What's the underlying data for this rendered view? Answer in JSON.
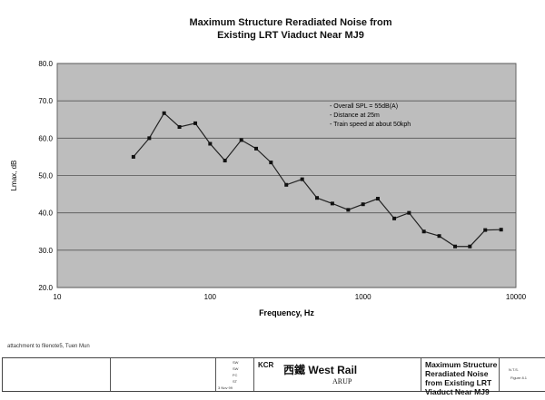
{
  "chart_data": {
    "type": "line",
    "title": "Maximum Structure Reradiated Noise from Existing LRT Viaduct Near MJ9",
    "title_lines": [
      "Maximum Structure Reradiated Noise from",
      "Existing LRT Viaduct Near MJ9"
    ],
    "xlabel": "Frequency, Hz",
    "ylabel": "Lmax, dB",
    "xscale": "log",
    "xlim": [
      10,
      10000
    ],
    "ylim": [
      20,
      80
    ],
    "xticks": [
      "10",
      "100",
      "1000",
      "10000"
    ],
    "yticks": [
      "20.0",
      "30.0",
      "40.0",
      "50.0",
      "60.0",
      "70.0",
      "80.0"
    ],
    "grid": "horizontal",
    "x": [
      31.5,
      40,
      50,
      63,
      80,
      100,
      125,
      160,
      200,
      250,
      315,
      400,
      500,
      630,
      800,
      1000,
      1250,
      1600,
      2000,
      2500,
      3150,
      4000,
      5000,
      6300,
      8000
    ],
    "values": [
      55,
      60,
      66.7,
      63,
      64,
      58.5,
      54,
      59.5,
      57.2,
      53.5,
      47.5,
      49,
      44,
      42.5,
      40.8,
      42.3,
      43.8,
      38.5,
      40,
      35,
      33.8,
      31,
      31,
      35.4,
      35.5
    ],
    "annotations": [
      "- Overall SPL = 55dB(A)",
      "- Distance at 25m",
      "- Train speed at about 50kph"
    ],
    "colors": {
      "plot_bg": "#bdbdbd",
      "line": "#222222",
      "marker": "#111111"
    }
  },
  "footer": {
    "note": "attachment to filenote5, Tuen Mun",
    "kcr": "KCR",
    "west_rail": "西鐵 West Rail",
    "arup": "ARUP",
    "drawing_title": [
      "Maximum Structure",
      "Reradiated Noise",
      "from Existing LRT",
      "Viaduct Near MJ9"
    ],
    "initials": [
      "SW",
      "SW",
      "FC",
      "ST"
    ],
    "date": "3 Nov 99",
    "scale": "N.T.S.",
    "figure": "Figure 8.1"
  }
}
